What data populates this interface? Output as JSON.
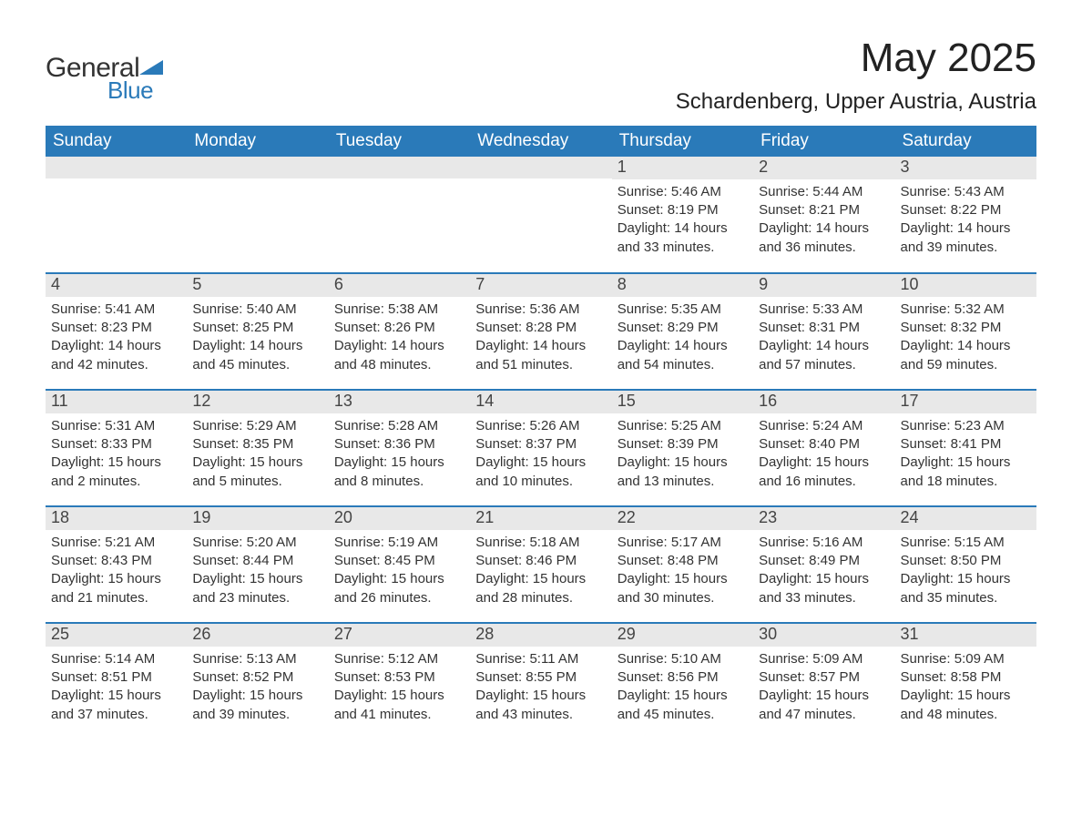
{
  "logo": {
    "word1": "General",
    "word2": "Blue",
    "triangle_color": "#2a7ab9"
  },
  "title": "May 2025",
  "location": "Schardenberg, Upper Austria, Austria",
  "colors": {
    "header_bg": "#2a7ab9",
    "header_text": "#ffffff",
    "daynum_bg": "#e8e8e8",
    "row_border": "#2a7ab9",
    "text": "#333333",
    "background": "#ffffff"
  },
  "layout": {
    "columns": 7,
    "rows": 5,
    "first_weekday_index": 4
  },
  "weekdays": [
    "Sunday",
    "Monday",
    "Tuesday",
    "Wednesday",
    "Thursday",
    "Friday",
    "Saturday"
  ],
  "days": [
    {
      "n": 1,
      "sunrise": "5:46 AM",
      "sunset": "8:19 PM",
      "daylight": "14 hours and 33 minutes."
    },
    {
      "n": 2,
      "sunrise": "5:44 AM",
      "sunset": "8:21 PM",
      "daylight": "14 hours and 36 minutes."
    },
    {
      "n": 3,
      "sunrise": "5:43 AM",
      "sunset": "8:22 PM",
      "daylight": "14 hours and 39 minutes."
    },
    {
      "n": 4,
      "sunrise": "5:41 AM",
      "sunset": "8:23 PM",
      "daylight": "14 hours and 42 minutes."
    },
    {
      "n": 5,
      "sunrise": "5:40 AM",
      "sunset": "8:25 PM",
      "daylight": "14 hours and 45 minutes."
    },
    {
      "n": 6,
      "sunrise": "5:38 AM",
      "sunset": "8:26 PM",
      "daylight": "14 hours and 48 minutes."
    },
    {
      "n": 7,
      "sunrise": "5:36 AM",
      "sunset": "8:28 PM",
      "daylight": "14 hours and 51 minutes."
    },
    {
      "n": 8,
      "sunrise": "5:35 AM",
      "sunset": "8:29 PM",
      "daylight": "14 hours and 54 minutes."
    },
    {
      "n": 9,
      "sunrise": "5:33 AM",
      "sunset": "8:31 PM",
      "daylight": "14 hours and 57 minutes."
    },
    {
      "n": 10,
      "sunrise": "5:32 AM",
      "sunset": "8:32 PM",
      "daylight": "14 hours and 59 minutes."
    },
    {
      "n": 11,
      "sunrise": "5:31 AM",
      "sunset": "8:33 PM",
      "daylight": "15 hours and 2 minutes."
    },
    {
      "n": 12,
      "sunrise": "5:29 AM",
      "sunset": "8:35 PM",
      "daylight": "15 hours and 5 minutes."
    },
    {
      "n": 13,
      "sunrise": "5:28 AM",
      "sunset": "8:36 PM",
      "daylight": "15 hours and 8 minutes."
    },
    {
      "n": 14,
      "sunrise": "5:26 AM",
      "sunset": "8:37 PM",
      "daylight": "15 hours and 10 minutes."
    },
    {
      "n": 15,
      "sunrise": "5:25 AM",
      "sunset": "8:39 PM",
      "daylight": "15 hours and 13 minutes."
    },
    {
      "n": 16,
      "sunrise": "5:24 AM",
      "sunset": "8:40 PM",
      "daylight": "15 hours and 16 minutes."
    },
    {
      "n": 17,
      "sunrise": "5:23 AM",
      "sunset": "8:41 PM",
      "daylight": "15 hours and 18 minutes."
    },
    {
      "n": 18,
      "sunrise": "5:21 AM",
      "sunset": "8:43 PM",
      "daylight": "15 hours and 21 minutes."
    },
    {
      "n": 19,
      "sunrise": "5:20 AM",
      "sunset": "8:44 PM",
      "daylight": "15 hours and 23 minutes."
    },
    {
      "n": 20,
      "sunrise": "5:19 AM",
      "sunset": "8:45 PM",
      "daylight": "15 hours and 26 minutes."
    },
    {
      "n": 21,
      "sunrise": "5:18 AM",
      "sunset": "8:46 PM",
      "daylight": "15 hours and 28 minutes."
    },
    {
      "n": 22,
      "sunrise": "5:17 AM",
      "sunset": "8:48 PM",
      "daylight": "15 hours and 30 minutes."
    },
    {
      "n": 23,
      "sunrise": "5:16 AM",
      "sunset": "8:49 PM",
      "daylight": "15 hours and 33 minutes."
    },
    {
      "n": 24,
      "sunrise": "5:15 AM",
      "sunset": "8:50 PM",
      "daylight": "15 hours and 35 minutes."
    },
    {
      "n": 25,
      "sunrise": "5:14 AM",
      "sunset": "8:51 PM",
      "daylight": "15 hours and 37 minutes."
    },
    {
      "n": 26,
      "sunrise": "5:13 AM",
      "sunset": "8:52 PM",
      "daylight": "15 hours and 39 minutes."
    },
    {
      "n": 27,
      "sunrise": "5:12 AM",
      "sunset": "8:53 PM",
      "daylight": "15 hours and 41 minutes."
    },
    {
      "n": 28,
      "sunrise": "5:11 AM",
      "sunset": "8:55 PM",
      "daylight": "15 hours and 43 minutes."
    },
    {
      "n": 29,
      "sunrise": "5:10 AM",
      "sunset": "8:56 PM",
      "daylight": "15 hours and 45 minutes."
    },
    {
      "n": 30,
      "sunrise": "5:09 AM",
      "sunset": "8:57 PM",
      "daylight": "15 hours and 47 minutes."
    },
    {
      "n": 31,
      "sunrise": "5:09 AM",
      "sunset": "8:58 PM",
      "daylight": "15 hours and 48 minutes."
    }
  ],
  "labels": {
    "sunrise_prefix": "Sunrise: ",
    "sunset_prefix": "Sunset: ",
    "daylight_prefix": "Daylight: "
  }
}
